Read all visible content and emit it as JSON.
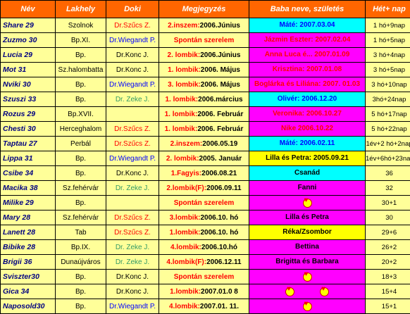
{
  "headers": [
    "Név",
    "Lakhely",
    "Doki",
    "Megjegyzés",
    "Baba neve, születés",
    "Hét+ nap"
  ],
  "rows": [
    {
      "name": "Share 29",
      "place": "Szolnok",
      "doctor": "Dr.Szűcs Z.",
      "doc_color": "red",
      "note_prefix": "2.inszem:",
      "note_rest": "2006.Június",
      "baby": "Máté: 2007.03.04",
      "baby_bg": "cyan",
      "baby_text": "blue",
      "week": "1 hó+9nap"
    },
    {
      "name": "Zuzmo 30",
      "place": "Bp.XI.",
      "doctor": "Dr.Wiegandt P.",
      "doc_color": "blue",
      "note_prefix": "Spontán szerelem",
      "note_rest": "",
      "baby": "Jázmin Eszter: 2007.02.04",
      "baby_bg": "magenta",
      "baby_text": "red",
      "week": "1 hó+5nap"
    },
    {
      "name": "Lucia 29",
      "place": "Bp.",
      "doctor": "Dr.Konc J.",
      "doc_color": "black",
      "note_prefix": "2. lombik:",
      "note_rest": "2006.Június",
      "baby": "Anna Luca é... 2007.01.09",
      "baby_bg": "magenta",
      "baby_text": "red",
      "week": "3 hó+4nap"
    },
    {
      "name": "Mot 31",
      "place": "Sz.halombatta",
      "doctor": "Dr.Konc J.",
      "doc_color": "black",
      "note_prefix": "1. lombik:",
      "note_rest": "2006. Május",
      "baby": "Krisztina: 2007.01.08",
      "baby_bg": "magenta",
      "baby_text": "red",
      "week": "3 hó+5nap"
    },
    {
      "name": "Nviki 30",
      "place": "Bp.",
      "doctor": "Dr.Wiegandt P.",
      "doc_color": "blue",
      "note_prefix": "3. lombik:",
      "note_rest": "2006. Május",
      "baby": "Boglárka és Liliána: 2007. 01.03",
      "baby_bg": "magenta",
      "baby_text": "red",
      "week": "3 hó+10nap"
    },
    {
      "name": "Szuszi 33",
      "place": "Bp.",
      "doctor": "Dr. Zeke J.",
      "doc_color": "green",
      "note_prefix": "1. lombik:",
      "note_rest": "2006.március",
      "baby": "Olivér: 2006.12.20",
      "baby_bg": "cyan",
      "baby_text": "blue",
      "week": "3hó+24nap"
    },
    {
      "name": "Rozus 29",
      "place": "Bp.XVII.",
      "doctor": "",
      "doc_color": "black",
      "note_prefix": "1. lombik:",
      "note_rest": "2006. Február",
      "baby": "Veronika: 2006.10.27",
      "baby_bg": "magenta",
      "baby_text": "red",
      "week": "5 hó+17nap"
    },
    {
      "name": "Chesti 30",
      "place": "Herceghalom",
      "doctor": "Dr.Szűcs Z.",
      "doc_color": "red",
      "note_prefix": "1. lombik:",
      "note_rest": "2006. Február",
      "baby": "Nike 2006.10.22",
      "baby_bg": "magenta",
      "baby_text": "red",
      "week": "5 hó+22nap"
    },
    {
      "name": "Taptau 27",
      "place": "Perbál",
      "doctor": "Dr.Szűcs Z.",
      "doc_color": "red",
      "note_prefix": "2.inszem:",
      "note_rest": "2006.05.19",
      "baby": "Máté: 2006.02.11",
      "baby_bg": "cyan",
      "baby_text": "blue",
      "week": "1év+2 hó+2nap"
    },
    {
      "name": "Lippa 31",
      "place": "Bp.",
      "doctor": "Dr.Wiegandt P.",
      "doc_color": "blue",
      "note_prefix": "2. lombik:",
      "note_rest": "2005. Január",
      "baby": "Lilla és Petra: 2005.09.21",
      "baby_bg": "yellow",
      "baby_text": "black",
      "week": "1év+6hó+23nap"
    },
    {
      "name": "Csibe 34",
      "place": "Bp.",
      "doctor": "Dr.Konc J.",
      "doc_color": "black",
      "note_prefix": "1.Fagyis:",
      "note_rest": "2006.08.21",
      "baby": "Csanád",
      "baby_bg": "cyan",
      "baby_text": "black",
      "week": "36"
    },
    {
      "name": "Macika 38",
      "place": "Sz.fehérvár",
      "doctor": "Dr. Zeke J.",
      "doc_color": "green",
      "note_prefix": "2.lombik(F):",
      "note_rest": "2006.09.11",
      "baby": "Fanni",
      "baby_bg": "magenta",
      "baby_text": "black",
      "week": "32"
    },
    {
      "name": "Milike 29",
      "place": "Bp.",
      "doctor": "",
      "doc_color": "black",
      "note_prefix": "Spontán szerelem",
      "note_rest": "",
      "baby": "heart",
      "baby_bg": "magenta",
      "baby_text": "black",
      "week": "30+1"
    },
    {
      "name": "Mary 28",
      "place": "Sz.fehérvár",
      "doctor": "Dr.Szűcs Z.",
      "doc_color": "red",
      "note_prefix": "3.lombik:",
      "note_rest": "2006.10. hó",
      "baby": "Lilla és Petra",
      "baby_bg": "magenta",
      "baby_text": "black",
      "week": "30"
    },
    {
      "name": "Lanett 28",
      "place": "Tab",
      "doctor": "Dr.Szűcs Z.",
      "doc_color": "red",
      "note_prefix": "1.lombik:",
      "note_rest": "2006.10. hó",
      "baby": "Réka/Zsombor",
      "baby_bg": "yellow",
      "baby_text": "black",
      "week": "29+6"
    },
    {
      "name": "Bibike 28",
      "place": "Bp.IX.",
      "doctor": "Dr. Zeke J.",
      "doc_color": "green",
      "note_prefix": "4.lombik:",
      "note_rest": "2006.10.hó",
      "baby": "Bettina",
      "baby_bg": "magenta",
      "baby_text": "black",
      "week": "26+2"
    },
    {
      "name": "Brigii 36",
      "place": "Dunaújváros",
      "doctor": "Dr. Zeke J.",
      "doc_color": "green",
      "note_prefix": "4.lombik(F):",
      "note_rest": "2006.12.11",
      "baby": "Brigitta és Barbara",
      "baby_bg": "magenta",
      "baby_text": "black",
      "week": "20+2"
    },
    {
      "name": "Sviszter30",
      "place": "Bp.",
      "doctor": "Dr.Konc J.",
      "doc_color": "black",
      "note_prefix": "Spontán szerelem",
      "note_rest": "",
      "baby": "heart",
      "baby_bg": "magenta",
      "baby_text": "black",
      "week": "18+3"
    },
    {
      "name": "Gica 34",
      "place": "Bp.",
      "doctor": "Dr.Konc J.",
      "doc_color": "black",
      "note_prefix": "1.lombik:",
      "note_rest": "2007.01.0 8",
      "baby": "heart2",
      "baby_bg": "magenta",
      "baby_text": "black",
      "week": "15+4"
    },
    {
      "name": "Naposold30",
      "place": "Bp.",
      "doctor": "Dr.Wiegandt P.",
      "doc_color": "blue",
      "note_prefix": "4.lombik:",
      "note_rest": "2007.01. 11.",
      "baby": "heart",
      "baby_bg": "magenta",
      "baby_text": "black",
      "week": "15+1"
    }
  ]
}
